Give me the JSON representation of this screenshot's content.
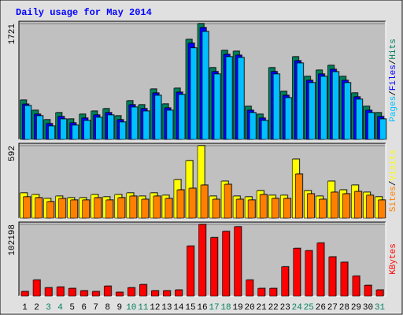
{
  "title": "Daily usage for May 2014",
  "chart_data": [
    {
      "type": "bar",
      "separator": "/",
      "series": [
        {
          "name": "Hits",
          "color": "#00805c",
          "values": [
            585,
            433,
            293,
            398,
            304,
            375,
            421,
            457,
            351,
            574,
            515,
            749,
            527,
            761,
            1487,
            1721,
            1066,
            1323,
            1311,
            492,
            375,
            1066,
            714,
            1229,
            937,
            1030,
            1101,
            937,
            691,
            492,
            398
          ]
        },
        {
          "name": "Files",
          "color": "#0000ff",
          "values": [
            525,
            375,
            235,
            340,
            246,
            317,
            363,
            398,
            293,
            515,
            457,
            690,
            468,
            702,
            1430,
            1662,
            1008,
            1264,
            1252,
            433,
            317,
            1008,
            655,
            1170,
            878,
            972,
            1042,
            878,
            632,
            433,
            340
          ]
        },
        {
          "name": "Pages",
          "color": "#00c0ff",
          "values": [
            503,
            351,
            199,
            304,
            211,
            281,
            328,
            363,
            258,
            480,
            421,
            655,
            433,
            667,
            1360,
            1604,
            972,
            1229,
            1217,
            398,
            281,
            972,
            620,
            1135,
            843,
            937,
            1006,
            843,
            597,
            398,
            304
          ]
        }
      ],
      "ylim": [
        0,
        1721
      ],
      "yticks": [
        1721
      ]
    },
    {
      "type": "bar",
      "separator": "/",
      "series": [
        {
          "name": "Visits",
          "color": "#ffff00",
          "values": [
            206,
            193,
            161,
            180,
            167,
            167,
            193,
            174,
            193,
            206,
            180,
            206,
            187,
            315,
            470,
            592,
            180,
            302,
            180,
            174,
            225,
            187,
            187,
            482,
            225,
            180,
            302,
            231,
            270,
            212,
            174
          ]
        },
        {
          "name": "Sites",
          "color": "#ff8000",
          "values": [
            174,
            167,
            135,
            161,
            148,
            148,
            167,
            148,
            167,
            180,
            154,
            180,
            161,
            231,
            244,
            270,
            154,
            276,
            154,
            148,
            193,
            161,
            161,
            360,
            199,
            154,
            212,
            199,
            218,
            187,
            148
          ]
        }
      ],
      "ylim": [
        0,
        592
      ],
      "yticks": [
        592
      ]
    },
    {
      "type": "bar",
      "categories": [
        "1",
        "2",
        "3",
        "4",
        "5",
        "6",
        "7",
        "8",
        "9",
        "10",
        "11",
        "12",
        "13",
        "14",
        "15",
        "16",
        "17",
        "18",
        "19",
        "20",
        "21",
        "22",
        "23",
        "24",
        "25",
        "26",
        "27",
        "28",
        "29",
        "30",
        "31"
      ],
      "category_colors": [
        "#000000",
        "#000000",
        "#00805c",
        "#00805c",
        "#000000",
        "#000000",
        "#000000",
        "#000000",
        "#000000",
        "#00805c",
        "#00805c",
        "#000000",
        "#000000",
        "#000000",
        "#000000",
        "#000000",
        "#00805c",
        "#00805c",
        "#000000",
        "#000000",
        "#000000",
        "#000000",
        "#000000",
        "#00805c",
        "#00805c",
        "#000000",
        "#000000",
        "#000000",
        "#000000",
        "#000000",
        "#00805c"
      ],
      "series": [
        {
          "name": "KBytes",
          "color": "#ff0000",
          "values": [
            6600,
            23000,
            12000,
            13000,
            11000,
            7700,
            6600,
            14300,
            5500,
            12000,
            16500,
            7700,
            7700,
            8800,
            71400,
            102198,
            83500,
            92300,
            98900,
            23000,
            11000,
            11000,
            41800,
            68100,
            64800,
            75800,
            56000,
            48300,
            28600,
            15400,
            8800
          ]
        }
      ],
      "ylim": [
        0,
        102198
      ],
      "yticks": [
        102198
      ]
    }
  ]
}
